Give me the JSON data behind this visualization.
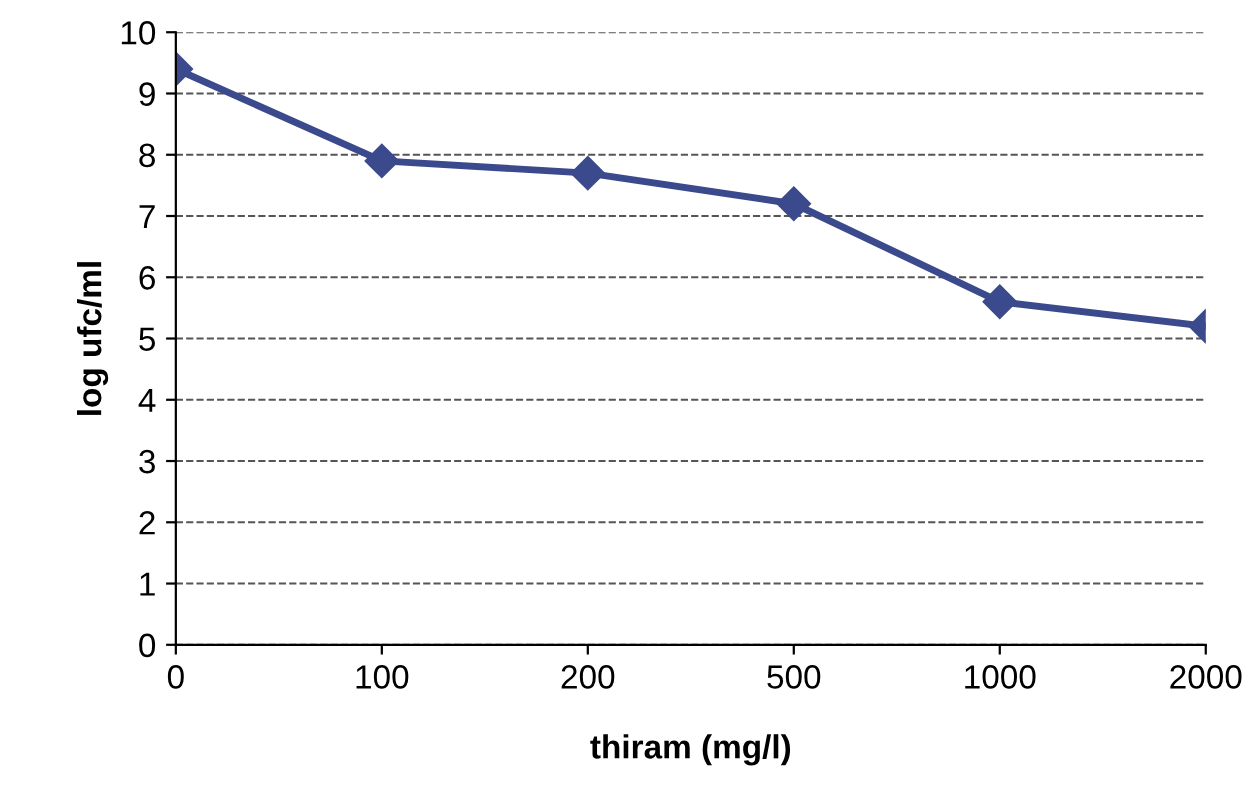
{
  "chart_data": {
    "type": "line",
    "xlabel": "thiram (mg/l)",
    "ylabel": "log ufc/ml",
    "categories": [
      "0",
      "100",
      "200",
      "500",
      "1000",
      "2000"
    ],
    "series": [
      {
        "color": "#3b4a8c",
        "values": [
          9.4,
          7.9,
          7.7,
          7.2,
          5.6,
          5.2
        ]
      }
    ],
    "ylim": [
      0,
      10
    ],
    "yticks": [
      0,
      1,
      2,
      3,
      4,
      5,
      6,
      7,
      8,
      9,
      10
    ],
    "grid": "y",
    "marker": "diamond",
    "line_style": "solid",
    "legend": false
  }
}
